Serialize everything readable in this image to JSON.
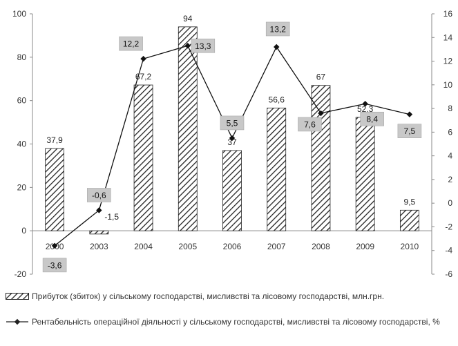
{
  "chart_data": {
    "type": "bar",
    "categories": [
      "2000",
      "2003",
      "2004",
      "2005",
      "2006",
      "2007",
      "2008",
      "2009",
      "2010"
    ],
    "series": [
      {
        "name": "Прибуток (збиток) у сільському господарстві, мисливстві та лісовому господарстві, млн.грн.",
        "type": "bar",
        "axis": "left",
        "values": [
          37.9,
          -1.5,
          67.2,
          94,
          37,
          56.6,
          67,
          52.3,
          9.5
        ],
        "labels": [
          "37,9",
          "-1,5",
          "67,2",
          "94",
          "37",
          "56,6",
          "67",
          "52,3",
          "9,5"
        ]
      },
      {
        "name": "Рентабельність операційної діяльності у сільському господарстві, мисливстві та лісовому господарстві, %",
        "type": "line",
        "axis": "right",
        "values": [
          -3.6,
          -0.6,
          12.2,
          13.3,
          5.5,
          13.2,
          7.6,
          8.4,
          7.5
        ],
        "labels": [
          "-3,6",
          "-0,6",
          "12,2",
          "13,3",
          "5,5",
          "13,2",
          "7,6",
          "8,4",
          "7,5"
        ]
      }
    ],
    "y_left": {
      "lim": [
        -20,
        100
      ],
      "ticks": [
        "-20",
        "0",
        "20",
        "40",
        "60",
        "80",
        "100"
      ]
    },
    "y_right": {
      "lim": [
        -6,
        16
      ],
      "ticks": [
        "-6",
        "-4",
        "-2",
        "0",
        "2",
        "4",
        "6",
        "8",
        "10",
        "12",
        "14",
        "16"
      ]
    },
    "legend_position": "bottom",
    "grid": false
  },
  "legend": {
    "bar_label": "Прибуток (збиток) у сільському господарстві, мисливстві та лісовому господарстві, млн.грн.",
    "line_label": "Рентабельність операційної діяльності у сільському господарстві, мисливстві та лісовому господарстві, %"
  }
}
